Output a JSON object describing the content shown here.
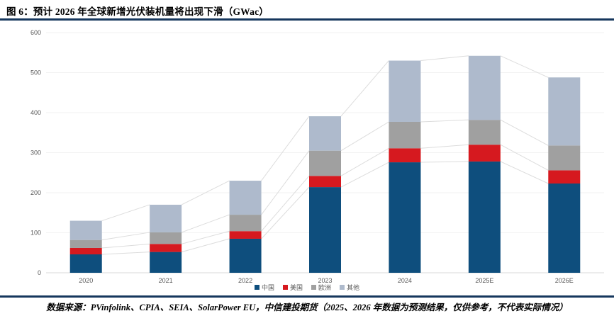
{
  "header": {
    "title": "图 6：预计 2026 年全球新增光伏装机量将出现下滑（GWac）"
  },
  "footer": {
    "source": "数据来源：PVinfolink、CPIA、SEIA、SolarPower EU，中信建投期货（2025、2026 年数据为预测结果，仅供参考，不代表实际情况）"
  },
  "colors": {
    "accent_rule": "#16375d",
    "axis_text": "#595959",
    "grid_line": "#f2f2f2",
    "axis_line": "#d9d9d9",
    "connector_line": "#dcdcdc"
  },
  "chart_data": {
    "type": "bar",
    "stacked": true,
    "title": "预计 2026 年全球新增光伏装机量将出现下滑",
    "unit": "GWac",
    "categories": [
      "2020",
      "2021",
      "2022",
      "2023",
      "2024",
      "2025E",
      "2026E"
    ],
    "series": [
      {
        "name": "中国",
        "color": "#0e4e7d",
        "values": [
          46,
          52,
          85,
          214,
          276,
          278,
          223
        ]
      },
      {
        "name": "美国",
        "color": "#d6191f",
        "values": [
          16,
          20,
          19,
          28,
          35,
          42,
          33
        ]
      },
      {
        "name": "欧洲",
        "color": "#a0a0a0",
        "values": [
          20,
          29,
          41,
          63,
          66,
          62,
          62
        ]
      },
      {
        "name": "其他",
        "color": "#aebacc",
        "values": [
          48,
          69,
          85,
          86,
          153,
          160,
          170
        ]
      }
    ],
    "totals": [
      130,
      170,
      230,
      391,
      530,
      542,
      488
    ],
    "ylim": [
      0,
      600
    ],
    "ytick_step": 100,
    "yticks": [
      "0",
      "100",
      "200",
      "300",
      "400",
      "500",
      "600"
    ],
    "legend_position": "bottom",
    "grid": true,
    "series_connector_lines": true
  }
}
